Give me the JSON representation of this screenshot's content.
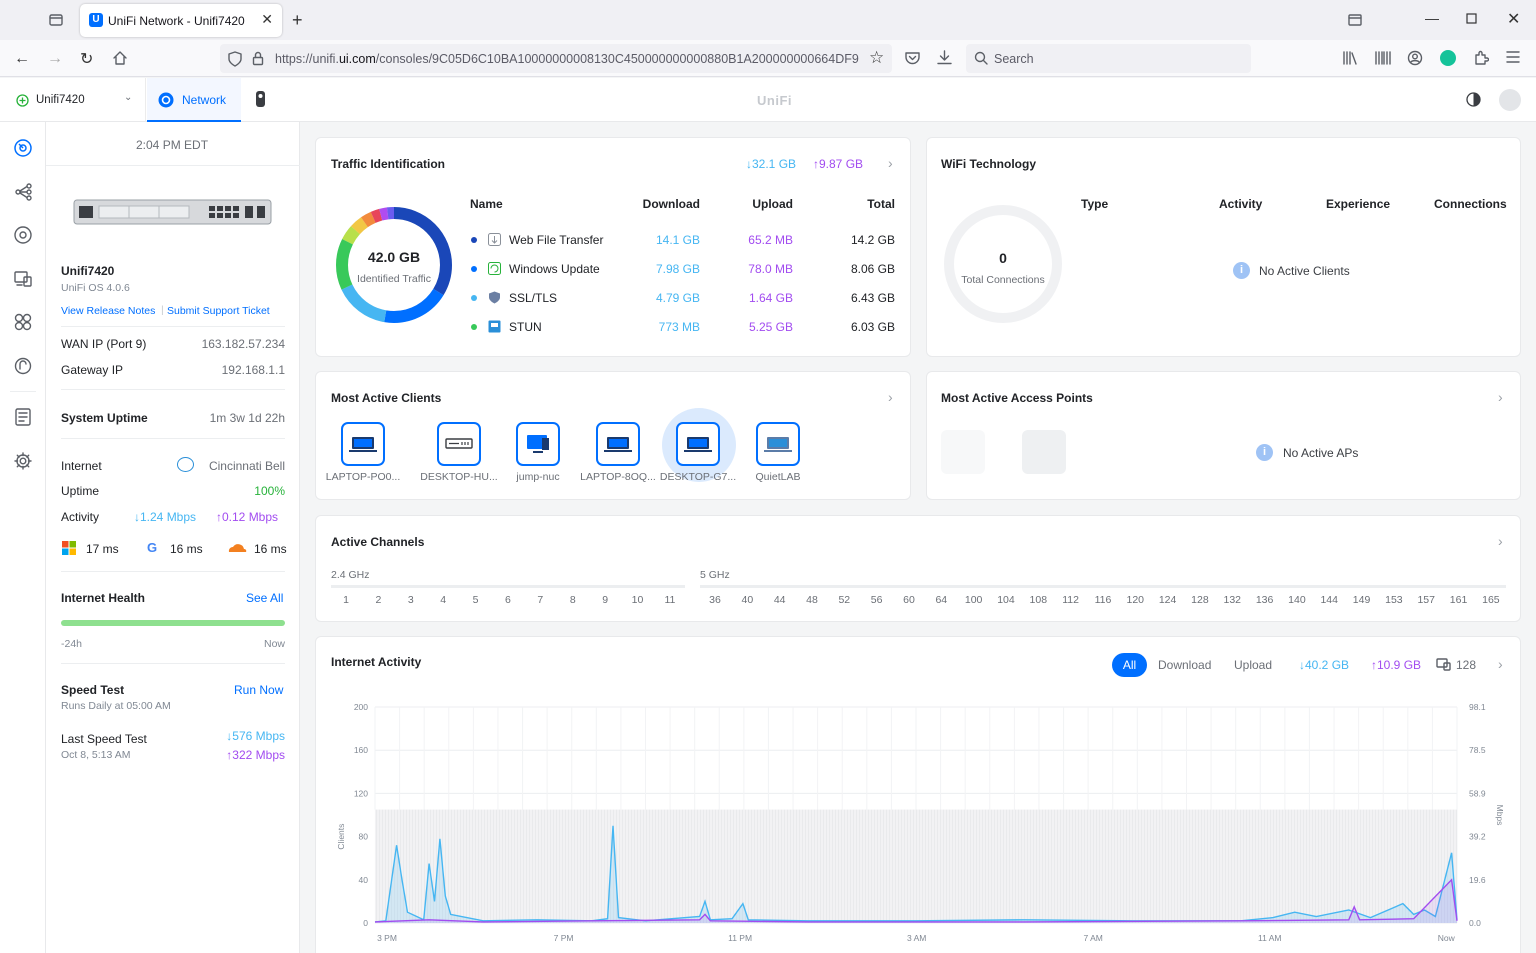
{
  "browser": {
    "tab_title": "UniFi Network - Unifi7420",
    "url_prefix": "https://unifi.",
    "url_domain": "ui.com",
    "url_rest": "/consoles/9C05D6C10BA10000000008130C450000000000880B1A200000000664DF9",
    "search_placeholder": "Search"
  },
  "header": {
    "console_name": "Unifi7420",
    "app_name": "Network",
    "brand": "UniFi"
  },
  "side": {
    "time": "2:04 PM EDT",
    "device_name": "Unifi7420",
    "os_version": "UniFi OS 4.0.6",
    "release_notes": "View Release Notes",
    "support_ticket": "Submit Support Ticket",
    "wan_ip_label": "WAN IP (Port 9)",
    "wan_ip": "163.182.57.234",
    "gateway_label": "Gateway IP",
    "gateway_ip": "192.168.1.1",
    "uptime_label": "System Uptime",
    "uptime": "1m 3w 1d 22h",
    "internet_label": "Internet",
    "isp": "Cincinnati Bell",
    "inet_uptime_label": "Uptime",
    "inet_uptime": "100%",
    "activity_label": "Activity",
    "activity_down": "1.24 Mbps",
    "activity_up": "0.12 Mbps",
    "latency_ms": "17 ms",
    "latency_google": "16 ms",
    "latency_cf": "16 ms",
    "health_label": "Internet Health",
    "see_all": "See All",
    "health_start": "-24h",
    "health_end": "Now",
    "speedtest_label": "Speed Test",
    "run_now": "Run Now",
    "speedtest_schedule": "Runs Daily at 05:00 AM",
    "last_speedtest_label": "Last Speed Test",
    "last_speedtest_date": "Oct 8, 5:13 AM",
    "last_down": "576 Mbps",
    "last_up": "322 Mbps"
  },
  "traffic": {
    "title": "Traffic Identification",
    "total_down": "32.1 GB",
    "total_up": "9.87 GB",
    "donut_value": "42.0 GB",
    "donut_label": "Identified Traffic",
    "headers": {
      "name": "Name",
      "download": "Download",
      "upload": "Upload",
      "total": "Total"
    },
    "rows": [
      {
        "dot": "#1a47b8",
        "name": "Web File Transfer",
        "download": "14.1 GB",
        "upload": "65.2 MB",
        "total": "14.2 GB"
      },
      {
        "dot": "#006fff",
        "name": "Windows Update",
        "download": "7.98 GB",
        "upload": "78.0 MB",
        "total": "8.06 GB"
      },
      {
        "dot": "#46b6f2",
        "name": "SSL/TLS",
        "download": "4.79 GB",
        "upload": "1.64 GB",
        "total": "6.43 GB"
      },
      {
        "dot": "#38c95a",
        "name": "STUN",
        "download": "773 MB",
        "upload": "5.25 GB",
        "total": "6.03 GB"
      }
    ]
  },
  "wifi": {
    "title": "WiFi Technology",
    "connections": "0",
    "connections_label": "Total Connections",
    "headers": {
      "type": "Type",
      "activity": "Activity",
      "experience": "Experience",
      "connections": "Connections"
    },
    "empty": "No Active Clients"
  },
  "clients": {
    "title": "Most Active Clients",
    "items": [
      "LAPTOP-PO0...",
      "DESKTOP-HU...",
      "jump-nuc",
      "LAPTOP-8OQ...",
      "DESKTOP-G7...",
      "QuietLAB"
    ]
  },
  "aps": {
    "title": "Most Active Access Points",
    "empty": "No Active APs"
  },
  "channels": {
    "title": "Active Channels",
    "band24": "2.4 GHz",
    "band5": "5 GHz",
    "ch24": [
      "1",
      "2",
      "3",
      "4",
      "5",
      "6",
      "7",
      "8",
      "9",
      "10",
      "11"
    ],
    "ch5": [
      "36",
      "40",
      "44",
      "48",
      "52",
      "56",
      "60",
      "64",
      "100",
      "104",
      "108",
      "112",
      "116",
      "120",
      "124",
      "128",
      "132",
      "136",
      "140",
      "144",
      "149",
      "153",
      "157",
      "161",
      "165"
    ]
  },
  "activity": {
    "title": "Internet Activity",
    "filter_all": "All",
    "filter_download": "Download",
    "filter_upload": "Upload",
    "total_down": "40.2 GB",
    "total_up": "10.9 GB",
    "client_count": "128"
  },
  "chart_data": {
    "type": "area",
    "title": "Internet Activity",
    "ylabel": "Clients",
    "y2label": "Mbps",
    "x_ticks": [
      "3 PM",
      "7 PM",
      "11 PM",
      "3 AM",
      "7 AM",
      "11 AM",
      "Now"
    ],
    "y_ticks": [
      0,
      40,
      80,
      120,
      160,
      200
    ],
    "y2_ticks": [
      "0.0",
      "19.6",
      "39.2",
      "58.9",
      "78.5",
      "98.1"
    ],
    "ylim": [
      0,
      200
    ],
    "y2lim": [
      0,
      98.1
    ],
    "clients_level": 105,
    "series": [
      {
        "name": "Download",
        "color": "#46b6f2",
        "points": [
          [
            0.0,
            1
          ],
          [
            0.01,
            2
          ],
          [
            0.02,
            72
          ],
          [
            0.025,
            40
          ],
          [
            0.03,
            10
          ],
          [
            0.045,
            3
          ],
          [
            0.05,
            55
          ],
          [
            0.055,
            20
          ],
          [
            0.06,
            78
          ],
          [
            0.065,
            25
          ],
          [
            0.07,
            8
          ],
          [
            0.1,
            2
          ],
          [
            0.15,
            3
          ],
          [
            0.2,
            2
          ],
          [
            0.215,
            4
          ],
          [
            0.22,
            90
          ],
          [
            0.225,
            5
          ],
          [
            0.25,
            2
          ],
          [
            0.3,
            6
          ],
          [
            0.305,
            20
          ],
          [
            0.31,
            3
          ],
          [
            0.33,
            4
          ],
          [
            0.34,
            18
          ],
          [
            0.345,
            3
          ],
          [
            0.4,
            2
          ],
          [
            0.5,
            2
          ],
          [
            0.6,
            3
          ],
          [
            0.7,
            2
          ],
          [
            0.8,
            2
          ],
          [
            0.83,
            5
          ],
          [
            0.85,
            10
          ],
          [
            0.87,
            6
          ],
          [
            0.9,
            12
          ],
          [
            0.92,
            5
          ],
          [
            0.95,
            18
          ],
          [
            0.96,
            8
          ],
          [
            0.97,
            12
          ],
          [
            0.98,
            6
          ],
          [
            0.995,
            65
          ],
          [
            1.0,
            3
          ]
        ]
      },
      {
        "name": "Upload",
        "color": "#a24cf0",
        "points": [
          [
            0.0,
            1
          ],
          [
            0.05,
            3
          ],
          [
            0.1,
            1
          ],
          [
            0.2,
            2
          ],
          [
            0.3,
            3
          ],
          [
            0.305,
            8
          ],
          [
            0.31,
            2
          ],
          [
            0.4,
            1
          ],
          [
            0.6,
            1
          ],
          [
            0.8,
            2
          ],
          [
            0.9,
            3
          ],
          [
            0.905,
            15
          ],
          [
            0.91,
            3
          ],
          [
            0.96,
            4
          ],
          [
            0.995,
            40
          ],
          [
            1.0,
            2
          ]
        ]
      }
    ]
  }
}
